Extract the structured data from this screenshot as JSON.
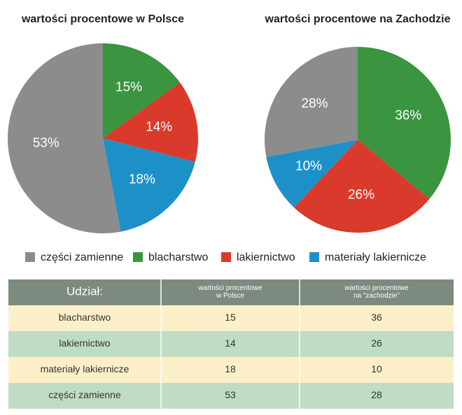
{
  "chart_data": [
    {
      "type": "pie",
      "title": "wartości procentowe w Polsce",
      "categories": [
        "blacharstwo",
        "lakiernictwo",
        "materiały lakiernicze",
        "części zamienne"
      ],
      "values": [
        15,
        14,
        18,
        53
      ],
      "value_labels": [
        "15%",
        "14%",
        "18%",
        "53%"
      ],
      "colors": [
        "#3a9440",
        "#d93a2b",
        "#1e90c8",
        "#8c8c8c"
      ]
    },
    {
      "type": "pie",
      "title": "wartości procentowe na Zachodzie",
      "categories": [
        "blacharstwo",
        "lakiernictwo",
        "materiały lakiernicze",
        "części zamienne"
      ],
      "values": [
        36,
        26,
        10,
        28
      ],
      "value_labels": [
        "36%",
        "26%",
        "10%",
        "28%"
      ],
      "colors": [
        "#3a9440",
        "#d93a2b",
        "#1e90c8",
        "#8c8c8c"
      ]
    }
  ],
  "table": {
    "header": [
      [
        "Udział:"
      ],
      [
        "wartości procentowe",
        "w Polsce"
      ],
      [
        "wartości procentowe",
        "na \"zachodzie\""
      ]
    ],
    "rows": [
      [
        "blacharstwo",
        "15",
        "36"
      ],
      [
        "lakiernictwo",
        "14",
        "26"
      ],
      [
        "materiały lakiernicze",
        "18",
        "10"
      ],
      [
        "części zamienne",
        "53",
        "28"
      ]
    ]
  }
}
